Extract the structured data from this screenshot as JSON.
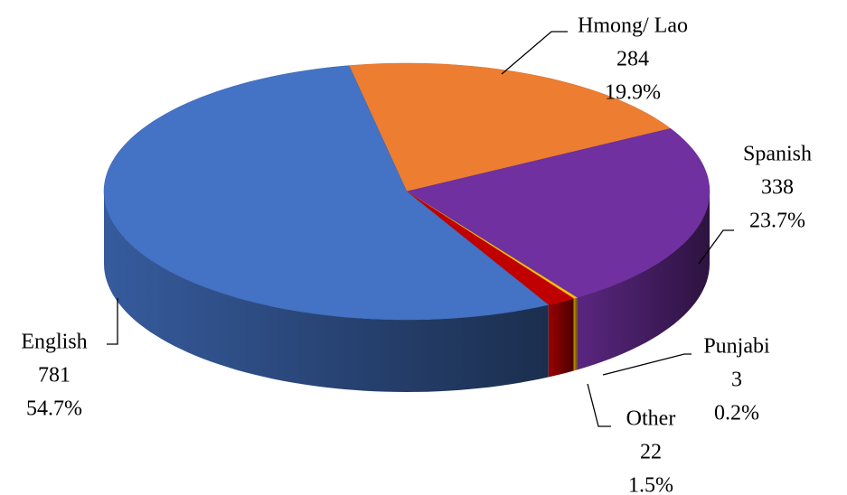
{
  "chart_data": {
    "type": "pie3d",
    "categories": [
      "Hmong/ Lao",
      "Spanish",
      "Punjabi",
      "Other",
      "English"
    ],
    "values": [
      284,
      338,
      3,
      22,
      781
    ],
    "percent_labels": [
      "19.9%",
      "23.7%",
      "0.2%",
      "1.5%",
      "54.7%"
    ],
    "colors": [
      "#ed7d31",
      "#7030a0",
      "#ffc000",
      "#c00000",
      "#4472c4"
    ]
  }
}
